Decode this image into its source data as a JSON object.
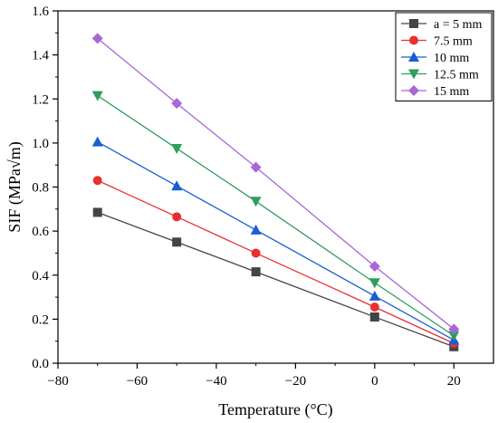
{
  "chart_data": {
    "type": "line",
    "title": "",
    "xlabel": "Temperature (°C)",
    "ylabel": "SIF (MPa√m)",
    "xlim": [
      -80,
      30
    ],
    "ylim": [
      0.0,
      1.6
    ],
    "xticks": [
      -80,
      -60,
      -40,
      -20,
      0,
      20
    ],
    "xtick_labels": [
      "−80",
      "−60",
      "−40",
      "−20",
      "0",
      "20"
    ],
    "yticks": [
      0.0,
      0.2,
      0.4,
      0.6,
      0.8,
      1.0,
      1.2,
      1.4,
      1.6
    ],
    "ytick_labels": [
      "0.0",
      "0.2",
      "0.4",
      "0.6",
      "0.8",
      "1.0",
      "1.2",
      "1.4",
      "1.6"
    ],
    "grid": false,
    "legend_position": "top-right",
    "x": [
      -70,
      -50,
      -30,
      0,
      20
    ],
    "series": [
      {
        "name": "a = 5 mm",
        "values": [
          0.685,
          0.55,
          0.415,
          0.21,
          0.075
        ],
        "color": "#444444",
        "marker": "square"
      },
      {
        "name": "7.5 mm",
        "values": [
          0.83,
          0.665,
          0.5,
          0.255,
          0.09
        ],
        "color": "#e8312f",
        "marker": "circle"
      },
      {
        "name": "10 mm",
        "values": [
          1.005,
          0.805,
          0.605,
          0.305,
          0.105
        ],
        "color": "#1a5fd0",
        "marker": "triangle-up"
      },
      {
        "name": "12.5 mm",
        "values": [
          1.215,
          0.975,
          0.735,
          0.365,
          0.125
        ],
        "color": "#2e9e5b",
        "marker": "triangle-down"
      },
      {
        "name": "15 mm",
        "values": [
          1.475,
          1.18,
          0.89,
          0.44,
          0.155
        ],
        "color": "#a866d6",
        "marker": "diamond"
      }
    ]
  }
}
